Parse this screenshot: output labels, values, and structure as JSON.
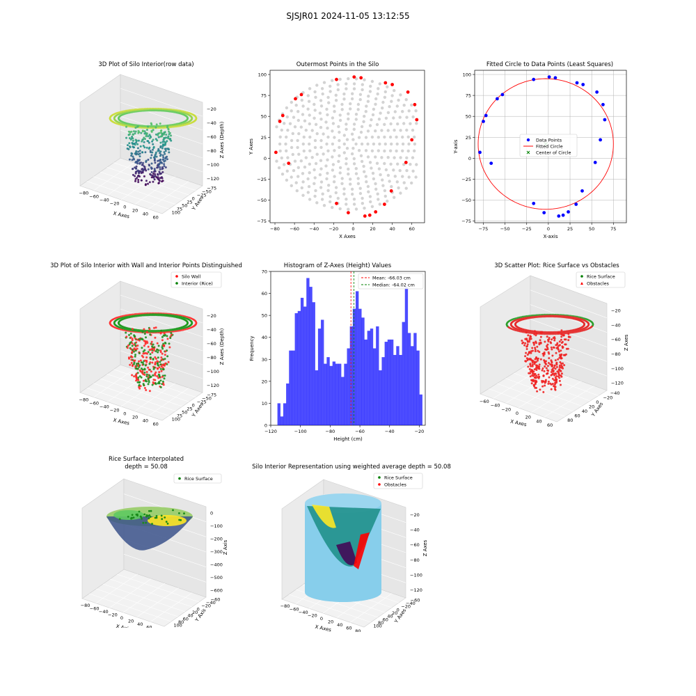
{
  "figure": {
    "title": "SJSJR01 2024-11-05 13:12:55"
  },
  "chart_data": [
    {
      "id": "p3d1",
      "type": "scatter",
      "title": "3D Plot of Silo Interior(row data)",
      "xlabel": "X Axes",
      "ylabel": "Y Axes",
      "zlabel": "Z Axes (Depth)",
      "xticks": [
        "−80",
        "−60",
        "−40",
        "−20",
        "0",
        "20",
        "40",
        "60"
      ],
      "yticks": [
        "100",
        "75",
        "50",
        "25",
        "0",
        "−25",
        "−50",
        "−75"
      ],
      "zticks": [
        "−20",
        "−40",
        "−60",
        "−80",
        "−100",
        "−120"
      ],
      "colormap": [
        "#440154",
        "#3b528b",
        "#21918c",
        "#5ec962",
        "#fde725"
      ]
    },
    {
      "id": "outer",
      "type": "scatter",
      "title": "Outermost Points in the Silo",
      "xlabel": "X Axes",
      "ylabel": "Y Axes",
      "xlim": [
        -85,
        73
      ],
      "ylim": [
        -77,
        105
      ],
      "xticks": [
        -80,
        -60,
        -40,
        -20,
        0,
        20,
        40,
        60
      ],
      "yticks": [
        -75,
        -50,
        -25,
        0,
        25,
        50,
        75,
        100
      ],
      "series": [
        {
          "color": "#d3d3d3",
          "points": "silo-grid"
        },
        {
          "color": "#ff0000",
          "points": [
            [
              -79,
              7
            ],
            [
              -75,
              44
            ],
            [
              -72,
              51
            ],
            [
              -66,
              -6
            ],
            [
              -59,
              71
            ],
            [
              -53,
              76
            ],
            [
              -17,
              -54
            ],
            [
              -17,
              94
            ],
            [
              -5,
              -65
            ],
            [
              1,
              97
            ],
            [
              8,
              96
            ],
            [
              12,
              -69
            ],
            [
              17,
              -68
            ],
            [
              23,
              -64
            ],
            [
              32,
              -55
            ],
            [
              33,
              90
            ],
            [
              39,
              -39
            ],
            [
              40,
              88
            ],
            [
              54,
              -5
            ],
            [
              56,
              79
            ],
            [
              60,
              22
            ],
            [
              63,
              64
            ],
            [
              65,
              46
            ]
          ]
        }
      ]
    },
    {
      "id": "circle",
      "type": "scatter",
      "title": "Fitted Circle to Data Points (Least Squares)",
      "xlabel": "X-axis",
      "ylabel": "Y-axis",
      "xlim": [
        -85,
        90
      ],
      "ylim": [
        -77,
        105
      ],
      "xticks": [
        -75,
        -50,
        -25,
        0,
        25,
        50,
        75
      ],
      "yticks": [
        -75,
        -50,
        -25,
        0,
        25,
        50,
        75,
        100
      ],
      "grid": true,
      "points": [
        [
          -79,
          7
        ],
        [
          -75,
          44
        ],
        [
          -72,
          51
        ],
        [
          -66,
          -6
        ],
        [
          -59,
          71
        ],
        [
          -53,
          76
        ],
        [
          -17,
          -54
        ],
        [
          -17,
          94
        ],
        [
          -5,
          -65
        ],
        [
          1,
          97
        ],
        [
          8,
          96
        ],
        [
          12,
          -69
        ],
        [
          17,
          -68
        ],
        [
          23,
          -64
        ],
        [
          32,
          -55
        ],
        [
          33,
          90
        ],
        [
          39,
          -39
        ],
        [
          40,
          88
        ],
        [
          54,
          -5
        ],
        [
          56,
          79
        ],
        [
          60,
          22
        ],
        [
          63,
          64
        ],
        [
          65,
          46
        ]
      ],
      "circle": {
        "cx": -3,
        "cy": 17,
        "r": 78
      },
      "legend": [
        "Data Points",
        "Fitted Circle",
        "Center of Circle"
      ]
    },
    {
      "id": "p3d2",
      "type": "scatter",
      "title": "3D Plot of Silo Interior with Wall and Interior Points Distinguished",
      "xlabel": "X Axes",
      "ylabel": "Y Axes",
      "zlabel": "Z Axes (Depth)",
      "xticks": [
        "−80",
        "−60",
        "−40",
        "−20",
        "0",
        "20",
        "40",
        "60"
      ],
      "yticks": [
        "100",
        "75",
        "50",
        "25",
        "0",
        "−25",
        "−50",
        "−75"
      ],
      "zticks": [
        "−20",
        "−40",
        "−60",
        "−80",
        "−100",
        "−120"
      ],
      "legend": [
        "Silo Wall",
        "Interior (Rice)"
      ]
    },
    {
      "id": "hist",
      "type": "bar",
      "title": "Histogram of Z-Axes (Height) Values",
      "xlabel": "Height (cm)",
      "ylabel": "Frequency",
      "xlim": [
        -120,
        -16
      ],
      "ylim": [
        0,
        70
      ],
      "xticks": [
        -120,
        -100,
        -80,
        -60,
        -40,
        -20
      ],
      "yticks": [
        0,
        10,
        20,
        30,
        40,
        50,
        60,
        70
      ],
      "bin_start": -115.5,
      "bin_width": 1.95,
      "values": [
        10,
        4,
        10,
        19,
        34,
        34,
        51,
        52,
        58,
        54,
        67,
        63,
        56,
        25,
        44,
        48,
        28,
        31,
        27,
        29,
        28,
        28,
        22,
        28,
        35,
        45,
        53,
        61,
        53,
        49,
        39,
        43,
        44,
        35,
        45,
        25,
        31,
        38,
        39,
        39,
        32,
        36,
        32,
        47,
        63,
        42,
        36,
        42,
        34,
        14
      ],
      "mean": -66.03,
      "median": -64.02,
      "legend": [
        "Mean: -66.03 cm",
        "Median: -64.02 cm"
      ]
    },
    {
      "id": "p3d3",
      "type": "scatter",
      "title": "3D Scatter Plot: Rice Surface vs Obstacles",
      "xlabel": "X Axes",
      "ylabel": "Y Axes",
      "zlabel": "Z Axes",
      "xticks": [
        "−60",
        "−40",
        "−20",
        "0",
        "20",
        "40",
        "60"
      ],
      "yticks": [
        "80",
        "60",
        "40",
        "20",
        "0",
        "−20",
        "−40"
      ],
      "zticks": [
        "−20",
        "−40",
        "−60",
        "−80",
        "−100",
        "−120"
      ],
      "legend": [
        "Rice Surface",
        "Obstacles"
      ]
    },
    {
      "id": "p3d4",
      "type": "area",
      "title": "Rice Surface Interpolated",
      "subtitle": "depth = 50.08",
      "xlabel": "X Axis",
      "ylabel": "Y Axis",
      "zlabel": "Z Axis",
      "xticks": [
        "−80",
        "−60",
        "−40",
        "−20",
        "0",
        "20",
        "40",
        "60",
        "80"
      ],
      "yticks": [
        "100",
        "80",
        "60",
        "40",
        "20",
        "0",
        "−20",
        "−40",
        "−60"
      ],
      "zticks": [
        "0",
        "−100",
        "−200",
        "−300",
        "−400",
        "−500",
        "−600"
      ],
      "legend": [
        "Rice Surface"
      ]
    },
    {
      "id": "p3d5",
      "type": "area",
      "title": "Silo Interior Representation using weighted average depth = 50.08",
      "xlabel": "X Axes",
      "ylabel": "Y Axes",
      "zlabel": "Z Axes",
      "xticks": [
        "−80",
        "−60",
        "−40",
        "−20",
        "0",
        "20",
        "40",
        "60",
        "80"
      ],
      "yticks": [
        "100",
        "80",
        "60",
        "40",
        "20",
        "0",
        "−20",
        "−40",
        "−60"
      ],
      "zticks": [
        "−20",
        "−40",
        "−60",
        "−80",
        "−100",
        "−120"
      ],
      "legend": [
        "Rice Surface",
        "Obstacles"
      ]
    }
  ]
}
